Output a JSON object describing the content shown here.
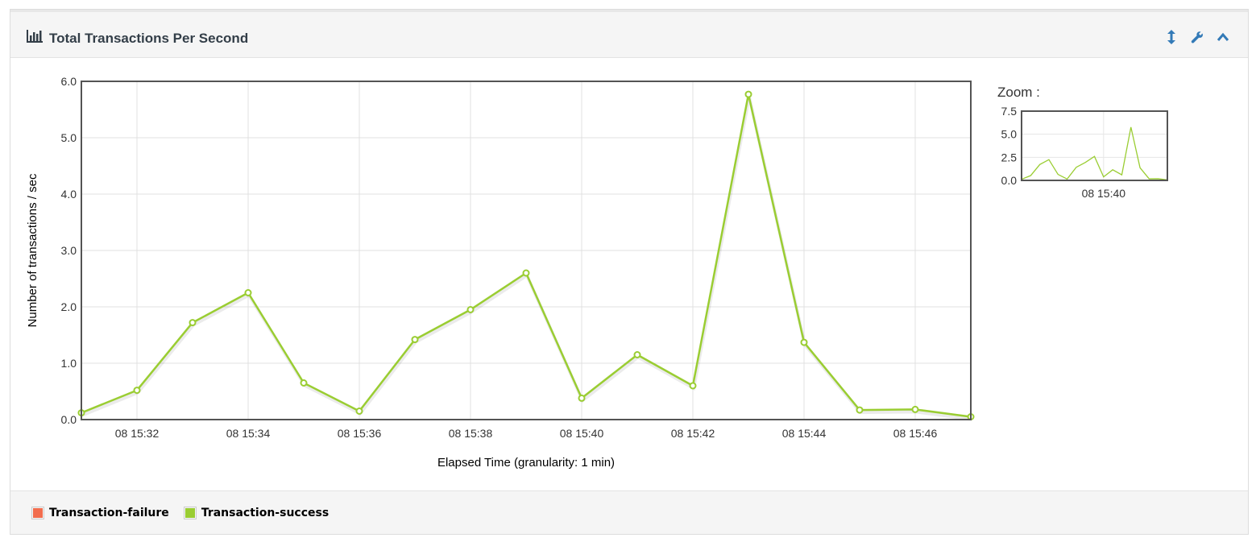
{
  "panel": {
    "title": "Total Transactions Per Second",
    "title_icon": "bar-chart-icon",
    "tools": [
      {
        "name": "resize-vertical-icon"
      },
      {
        "name": "wrench-icon"
      },
      {
        "name": "chevron-up-icon"
      }
    ]
  },
  "zoom": {
    "label": "Zoom :"
  },
  "legend": [
    {
      "label": "Transaction-failure",
      "color": "#f26d4e"
    },
    {
      "label": "Transaction-success",
      "color": "#9acd32"
    }
  ],
  "chart_data": {
    "type": "line",
    "xlabel": "Elapsed Time (granularity: 1 min)",
    "ylabel": "Number of transactions / sec",
    "x_minutes": [
      "08 15:31",
      "08 15:32",
      "08 15:33",
      "08 15:34",
      "08 15:35",
      "08 15:36",
      "08 15:37",
      "08 15:38",
      "08 15:39",
      "08 15:40",
      "08 15:41",
      "08 15:42",
      "08 15:43",
      "08 15:44",
      "08 15:45",
      "08 15:46",
      "08 15:47"
    ],
    "xticks": [
      "08 15:32",
      "08 15:34",
      "08 15:36",
      "08 15:38",
      "08 15:40",
      "08 15:42",
      "08 15:44",
      "08 15:46"
    ],
    "ylim": [
      0,
      6
    ],
    "yticks": [
      "0.0",
      "1.0",
      "2.0",
      "3.0",
      "4.0",
      "5.0",
      "6.0"
    ],
    "grid": true,
    "series": [
      {
        "name": "Transaction-success",
        "color": "#9acd32",
        "values": [
          0.12,
          0.52,
          1.72,
          2.25,
          0.65,
          0.15,
          1.42,
          1.95,
          2.6,
          0.38,
          1.15,
          0.6,
          5.77,
          1.37,
          0.17,
          0.18,
          0.05
        ]
      }
    ],
    "zoom_overview": {
      "ylim": [
        0,
        7.5
      ],
      "yticks": [
        "0.0",
        "2.5",
        "5.0",
        "7.5"
      ],
      "xticks": [
        "08 15:40"
      ]
    }
  }
}
